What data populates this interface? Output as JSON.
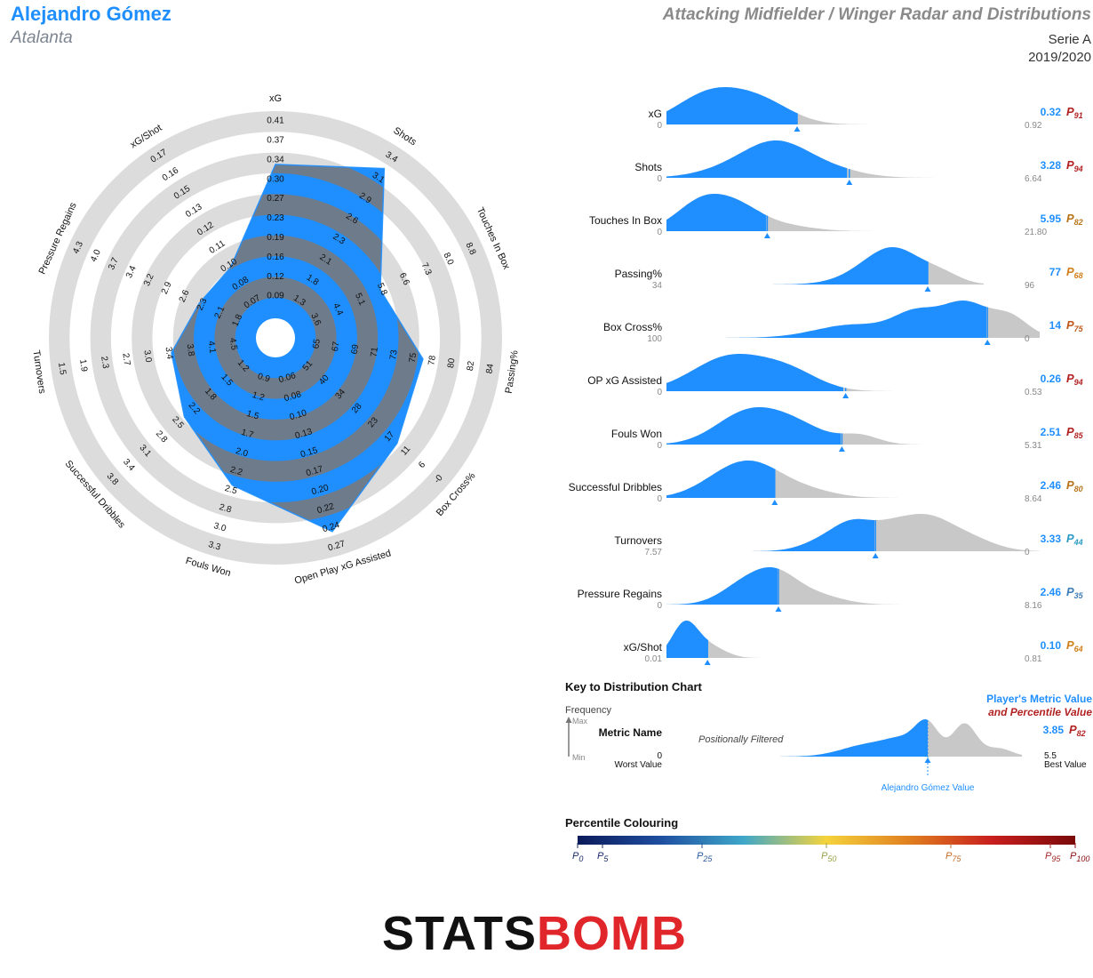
{
  "header": {
    "player": "Alejandro Gómez",
    "team": "Atalanta",
    "title": "Attacking Midfielder / Winger Radar and Distributions",
    "league": "Serie A",
    "season": "2019/2020"
  },
  "chart_data": [
    {
      "type": "radar",
      "series_color": "#1f8fff",
      "axes": [
        {
          "label": "xG",
          "ticks": [
            "0.09",
            "0.12",
            "0.16",
            "0.19",
            "0.23",
            "0.27",
            "0.30",
            "0.34",
            "0.37",
            "0.41"
          ],
          "value": 0.32,
          "range": [
            0.06,
            0.41
          ]
        },
        {
          "label": "Shots",
          "ticks": [
            "1.3",
            "1.8",
            "2.1",
            "2.3",
            "2.6",
            "2.9",
            "3.1",
            "3.4"
          ],
          "value": 3.28,
          "range": [
            1.0,
            3.6
          ]
        },
        {
          "label": "Touches In Box",
          "ticks": [
            "3.6",
            "4.4",
            "5.1",
            "5.8",
            "6.6",
            "7.3",
            "8.0",
            "8.8"
          ],
          "value": 5.95,
          "range": [
            2.9,
            9.5
          ]
        },
        {
          "label": "Passing%",
          "ticks": [
            "65",
            "67",
            "69",
            "71",
            "73",
            "75",
            "78",
            "80",
            "82",
            "84"
          ],
          "value": 77,
          "range": [
            62,
            86
          ]
        },
        {
          "label": "Box Cross%",
          "ticks": [
            "51",
            "40",
            "34",
            "28",
            "23",
            "17",
            "11",
            "6",
            "-0"
          ],
          "value": 14,
          "range": [
            57,
            -6
          ]
        },
        {
          "label": "Open Play xG Assisted",
          "ticks": [
            "0.06",
            "0.08",
            "0.10",
            "0.13",
            "0.15",
            "0.17",
            "0.20",
            "0.22",
            "0.24",
            "0.27"
          ],
          "value": 0.26,
          "range": [
            0.04,
            0.29
          ]
        },
        {
          "label": "Fouls Won",
          "ticks": [
            "0.9",
            "1.2",
            "1.5",
            "1.7",
            "2.0",
            "2.2",
            "2.5",
            "2.8",
            "3.0",
            "3.3"
          ],
          "value": 2.51,
          "range": [
            0.7,
            3.5
          ]
        },
        {
          "label": "Successful Dribbles",
          "ticks": [
            "1.2",
            "1.5",
            "1.8",
            "2.2",
            "2.5",
            "2.8",
            "3.1",
            "3.4",
            "3.8"
          ],
          "value": 2.46,
          "range": [
            0.9,
            4.1
          ]
        },
        {
          "label": "Turnovers",
          "ticks": [
            "4.5",
            "4.1",
            "3.8",
            "3.4",
            "3.0",
            "2.7",
            "2.3",
            "1.9",
            "1.5"
          ],
          "value": 3.33,
          "range": [
            4.9,
            1.1
          ]
        },
        {
          "label": "Pressure Regains",
          "ticks": [
            "1.8",
            "2.1",
            "2.3",
            "2.6",
            "2.9",
            "3.2",
            "3.4",
            "3.7",
            "4.0",
            "4.3"
          ],
          "value": 2.46,
          "range": [
            1.5,
            4.6
          ]
        },
        {
          "label": "xG/Shot",
          "ticks": [
            "0.07",
            "0.08",
            "0.10",
            "0.11",
            "0.12",
            "0.13",
            "0.15",
            "0.16",
            "0.17"
          ],
          "value": 0.1,
          "range": [
            0.06,
            0.19
          ]
        }
      ]
    },
    {
      "type": "area",
      "name": "distributions",
      "colors": {
        "player": "#1f8fff",
        "rest": "#c8c8c8"
      },
      "metrics": [
        {
          "label": "xG",
          "worst": "0",
          "best": "0.92",
          "value": "0.32",
          "percentile": "91",
          "pcolor": "#b22222",
          "vfrac": 0.35,
          "span": [
            0,
            0.68
          ],
          "peaks": [
            [
              0.12,
              1.0,
              0.09
            ],
            [
              0.26,
              0.6,
              0.08
            ]
          ]
        },
        {
          "label": "Shots",
          "worst": "0",
          "best": "6.64",
          "value": "3.28",
          "percentile": "94",
          "pcolor": "#b22222",
          "vfrac": 0.49,
          "span": [
            0,
            0.88
          ],
          "peaks": [
            [
              0.22,
              0.6,
              0.1
            ],
            [
              0.3,
              0.95,
              0.08
            ],
            [
              0.42,
              0.4,
              0.09
            ]
          ]
        },
        {
          "label": "Touches In Box",
          "worst": "0",
          "best": "21.80",
          "value": "5.95",
          "percentile": "82",
          "pcolor": "#b8741a",
          "vfrac": 0.27,
          "span": [
            0,
            0.85
          ],
          "peaks": [
            [
              0.1,
              1.0,
              0.07
            ],
            [
              0.2,
              0.5,
              0.06
            ],
            [
              0.3,
              0.2,
              0.08
            ]
          ]
        },
        {
          "label": "Passing%",
          "worst": "34",
          "best": "96",
          "value": "77",
          "percentile": "68",
          "pcolor": "#d0801c",
          "vfrac": 0.7,
          "span": [
            0.25,
            0.85
          ],
          "peaks": [
            [
              0.56,
              0.55,
              0.08
            ],
            [
              0.62,
              1.0,
              0.07
            ],
            [
              0.74,
              0.35,
              0.05
            ]
          ]
        },
        {
          "label": "Box Cross%",
          "worst": "100",
          "best": "0",
          "value": "14",
          "percentile": "75",
          "pcolor": "#c05a1a",
          "vfrac": 0.86,
          "span": [
            0,
            1.0
          ],
          "peaks": [
            [
              0.5,
              0.35,
              0.1
            ],
            [
              0.67,
              0.62,
              0.06
            ],
            [
              0.8,
              0.9,
              0.06
            ],
            [
              0.92,
              0.55,
              0.05
            ]
          ]
        },
        {
          "label": "OP xG Assisted",
          "worst": "0",
          "best": "0.53",
          "value": "0.26",
          "percentile": "94",
          "pcolor": "#b22222",
          "vfrac": 0.48,
          "span": [
            0,
            0.99
          ],
          "peaks": [
            [
              0.17,
              1.0,
              0.1
            ],
            [
              0.33,
              0.5,
              0.08
            ]
          ]
        },
        {
          "label": "Fouls Won",
          "worst": "0",
          "best": "5.31",
          "value": "2.51",
          "percentile": "85",
          "pcolor": "#b22222",
          "vfrac": 0.47,
          "span": [
            0,
            0.99
          ],
          "peaks": [
            [
              0.2,
              0.85,
              0.08
            ],
            [
              0.32,
              0.85,
              0.09
            ],
            [
              0.52,
              0.3,
              0.05
            ]
          ]
        },
        {
          "label": "Successful Dribbles",
          "worst": "0",
          "best": "8.64",
          "value": "2.46",
          "percentile": "80",
          "pcolor": "#b8741a",
          "vfrac": 0.29,
          "span": [
            0,
            0.88
          ],
          "peaks": [
            [
              0.17,
              0.9,
              0.08
            ],
            [
              0.25,
              0.7,
              0.07
            ],
            [
              0.36,
              0.35,
              0.08
            ]
          ]
        },
        {
          "label": "Turnovers",
          "worst": "7.57",
          "best": "0",
          "value": "3.33",
          "percentile": "44",
          "pcolor": "#2d9cc4",
          "vfrac": 0.56,
          "span": [
            0,
            1.0
          ],
          "peaks": [
            [
              0.43,
              0.4,
              0.06
            ],
            [
              0.5,
              0.7,
              0.05
            ],
            [
              0.6,
              0.8,
              0.06
            ],
            [
              0.7,
              0.9,
              0.06
            ],
            [
              0.8,
              0.5,
              0.07
            ]
          ]
        },
        {
          "label": "Pressure Regains",
          "worst": "0",
          "best": "8.16",
          "value": "2.46",
          "percentile": "35",
          "pcolor": "#3e7eb8",
          "vfrac": 0.3,
          "span": [
            0,
            0.85
          ],
          "peaks": [
            [
              0.2,
              0.55,
              0.06
            ],
            [
              0.29,
              0.95,
              0.06
            ],
            [
              0.4,
              0.3,
              0.07
            ]
          ]
        },
        {
          "label": "xG/Shot",
          "worst": "0.01",
          "best": "0.81",
          "value": "0.10",
          "percentile": "64",
          "pcolor": "#d0801c",
          "vfrac": 0.11,
          "span": [
            0,
            0.27
          ],
          "peaks": [
            [
              0.05,
              1.0,
              0.035
            ],
            [
              0.12,
              0.3,
              0.04
            ]
          ]
        }
      ]
    }
  ],
  "key": {
    "title": "Key to Distribution Chart",
    "frequency": "Frequency",
    "max": "Max",
    "min": "Min",
    "metric_name": "Metric Name",
    "worst_value_num": "0",
    "worst_value": "Worst Value",
    "best_value_num": "5.5",
    "best_value": "Best Value",
    "filter_note": "Positionally Filtered",
    "player_metric": "Player's Metric Value",
    "and_percentile": "and Percentile Value",
    "example_value": "3.85",
    "example_percentile": "82",
    "player_value_label": "Alejandro Gómez Value"
  },
  "percentile_colouring": {
    "title": "Percentile Colouring",
    "stops": [
      "#0b1a5a",
      "#1f4ea0",
      "#3fa7c9",
      "#f5d33c",
      "#e07f1f",
      "#c81e1e",
      "#7a0a0a"
    ],
    "ticks": [
      {
        "p": "0",
        "color": "#1a2a6a",
        "frac": 0.0
      },
      {
        "p": "5",
        "color": "#1a2a6a",
        "frac": 0.05
      },
      {
        "p": "25",
        "color": "#2a5a9a",
        "frac": 0.25
      },
      {
        "p": "50",
        "color": "#9aa04a",
        "frac": 0.5
      },
      {
        "p": "75",
        "color": "#c06a2a",
        "frac": 0.75
      },
      {
        "p": "95",
        "color": "#a52a2a",
        "frac": 0.95
      },
      {
        "p": "100",
        "color": "#8a1010",
        "frac": 1.0
      }
    ]
  },
  "brand": {
    "part1": "STATS",
    "part2": "BOMB"
  }
}
